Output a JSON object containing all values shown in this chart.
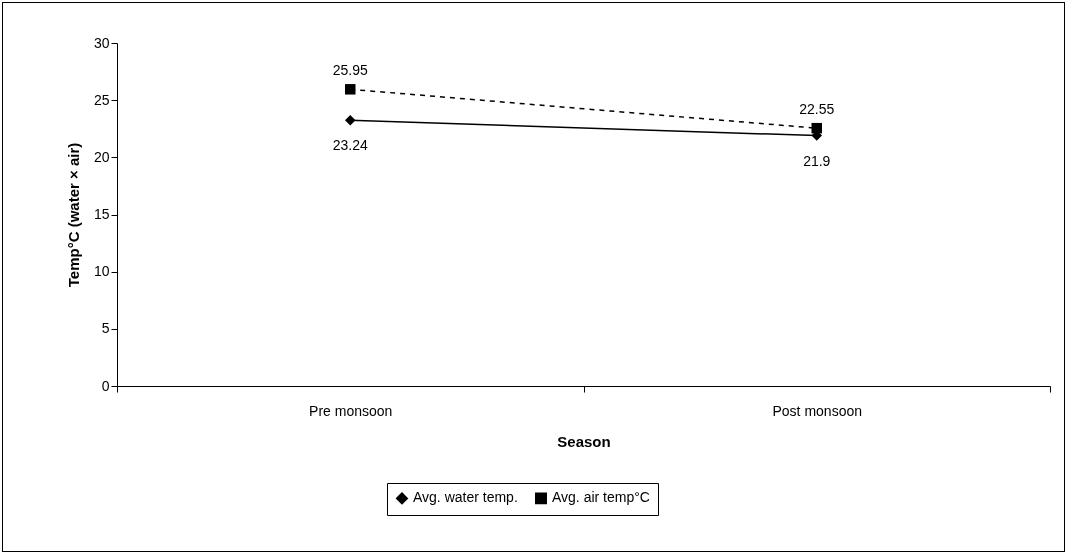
{
  "chart_data": {
    "type": "line",
    "xlabel": "Season",
    "ylabel": "Temp°C (water × air)",
    "categories": [
      "Pre monsoon",
      "Post monsoon"
    ],
    "series": [
      {
        "name": "Avg. water temp.",
        "color": "#000000",
        "values": [
          23.24,
          21.9
        ],
        "marker": "diamond",
        "line_style": "solid"
      },
      {
        "name": "Avg. air temp°C",
        "color": "#000000",
        "values": [
          25.95,
          22.55
        ],
        "marker": "square",
        "line_style": "dashed"
      }
    ],
    "ylim": [
      0,
      30
    ],
    "yticks": [
      0,
      5,
      10,
      15,
      20,
      25,
      30
    ],
    "grid": false,
    "legend": "bottom",
    "data_labels": true
  }
}
